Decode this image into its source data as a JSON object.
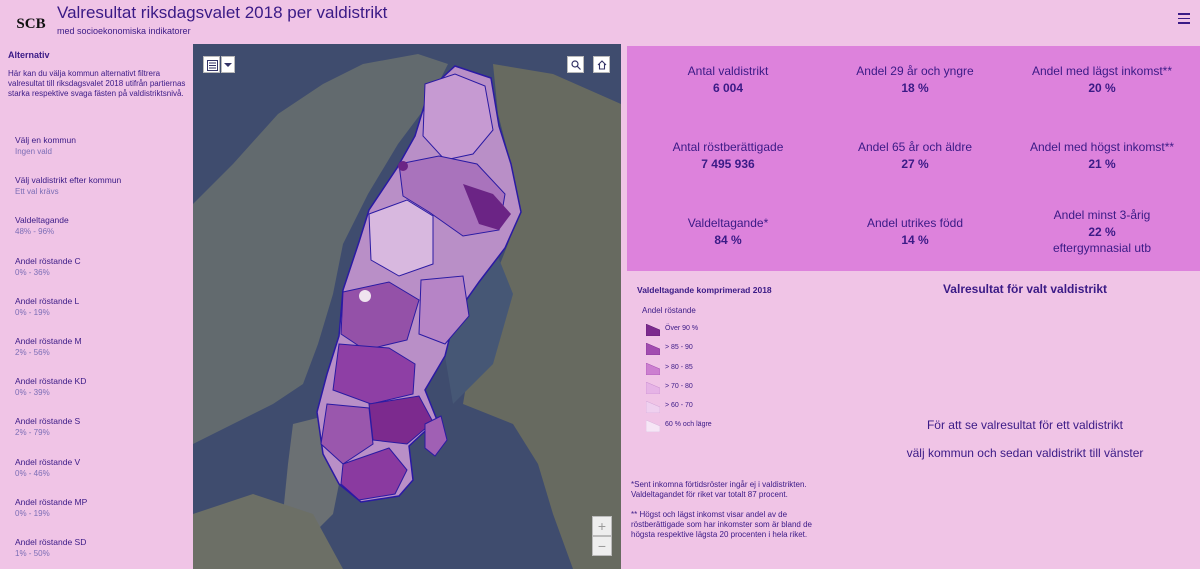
{
  "header": {
    "logo_text": "SCB",
    "title": "Valresultat riksdagsvalet 2018 per valdistrikt",
    "subtitle": "med socioekonomiska indikatorer",
    "menu_icon": "hamburger-icon"
  },
  "sidebar": {
    "heading": "Alternativ",
    "description": "Här kan du välja kommun alternativt filtrera valresultat till riksdagsvalet 2018 utifrån partiernas starka respektive svaga fästen på valdistriktsnivå.",
    "filters": [
      {
        "label": "Välj en kommun",
        "value": "Ingen vald"
      },
      {
        "label": "Välj valdistrikt efter kommun",
        "value": "Ett val krävs"
      },
      {
        "label": "Valdeltagande",
        "value": "48% - 96%"
      },
      {
        "label": "Andel röstande C",
        "value": "0% - 36%"
      },
      {
        "label": "Andel röstande L",
        "value": "0% - 19%"
      },
      {
        "label": "Andel röstande M",
        "value": "2% - 56%"
      },
      {
        "label": "Andel röstande KD",
        "value": "0% - 39%"
      },
      {
        "label": "Andel röstande S",
        "value": "2% - 79%"
      },
      {
        "label": "Andel röstande V",
        "value": "0% - 46%"
      },
      {
        "label": "Andel röstande MP",
        "value": "0% - 19%"
      },
      {
        "label": "Andel röstande SD",
        "value": "1% - 50%"
      }
    ]
  },
  "map": {
    "zoom_in": "+",
    "zoom_out": "−",
    "controls": [
      "layer-list-icon",
      "chevron-down-icon",
      "search-icon",
      "home-icon"
    ]
  },
  "stats": [
    {
      "label": "Antal valdistrikt",
      "value": "6 004"
    },
    {
      "label": "Andel 29 år och yngre",
      "value": "18 %"
    },
    {
      "label": "Andel med lägst inkomst**",
      "value": "20 %"
    },
    {
      "label": "Antal röstberättigade",
      "value": "7 495 936"
    },
    {
      "label": "Andel 65 år och äldre",
      "value": "27 %"
    },
    {
      "label": "Andel med högst inkomst**",
      "value": "21 %"
    },
    {
      "label": "Valdeltagande*",
      "value": "84 %"
    },
    {
      "label": "Andel utrikes född",
      "value": "14 %"
    },
    {
      "label": "Andel minst 3-årig",
      "value": "22 %",
      "extra": "eftergymnasial utb"
    }
  ],
  "legend": {
    "title": "Valdeltagande komprimerad 2018",
    "subtitle": "Andel röstande",
    "items": [
      {
        "label": "Över 90 %",
        "color": "#7c2a8e"
      },
      {
        "label": "> 85 - 90",
        "color": "#a24cb0"
      },
      {
        "label": "> 80 - 85",
        "color": "#cc7fd0"
      },
      {
        "label": "> 70 - 80",
        "color": "#e6b3e6"
      },
      {
        "label": "> 60 - 70",
        "color": "#efd0ef"
      },
      {
        "label": "60 % och lägre",
        "color": "#f6e6f6"
      }
    ]
  },
  "footnotes": [
    "*Sent inkomna förtidsröster ingår ej i valdistrikten. Valdeltagandet för riket var totalt 87 procent.",
    "** Högst och lägst inkomst visar andel av de röstberättigade som har inkomster som är bland de högsta respektive lägsta 20 procenten i hela riket."
  ],
  "results": {
    "title": "Valresultat för valt valdistrikt",
    "message_line1": "För att se valresultat för ett valdistrikt",
    "message_line2": "välj kommun och sedan valdistrikt till vänster"
  },
  "colors": {
    "background": "#f0c4e6",
    "stats_panel": "#dd82dc",
    "text": "#3a1a86",
    "muted_text": "#7b6eb6"
  }
}
